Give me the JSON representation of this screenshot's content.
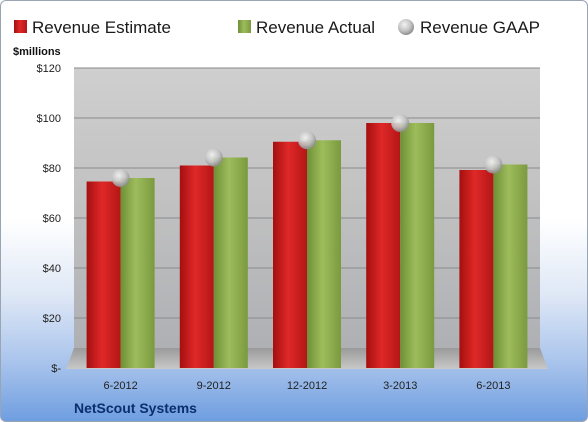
{
  "chart_data": {
    "type": "bar",
    "title": "",
    "unit_label": "$millions",
    "company": "NetScout Systems",
    "categories": [
      "6-2012",
      "9-2012",
      "12-2012",
      "3-2013",
      "6-2013"
    ],
    "series": [
      {
        "name": "Revenue Estimate",
        "kind": "bar",
        "color": "#d42020",
        "values": [
          74.6,
          81.0,
          90.5,
          98.0,
          79.2
        ]
      },
      {
        "name": "Revenue Actual",
        "kind": "bar",
        "color": "#8fb050",
        "values": [
          76.0,
          84.2,
          91.1,
          98.0,
          81.4
        ]
      },
      {
        "name": "Revenue GAAP",
        "kind": "marker",
        "color": "#c8c8c8",
        "values": [
          76.0,
          84.2,
          91.1,
          98.0,
          81.4
        ]
      }
    ],
    "y_ticks": [
      {
        "value": 0,
        "label": "$-"
      },
      {
        "value": 20,
        "label": "$20"
      },
      {
        "value": 40,
        "label": "$40"
      },
      {
        "value": 60,
        "label": "$60"
      },
      {
        "value": 80,
        "label": "$80"
      },
      {
        "value": 100,
        "label": "$100"
      },
      {
        "value": 120,
        "label": "$120"
      }
    ],
    "ylim": [
      0,
      120
    ],
    "grid": true,
    "legend_position": "top"
  }
}
